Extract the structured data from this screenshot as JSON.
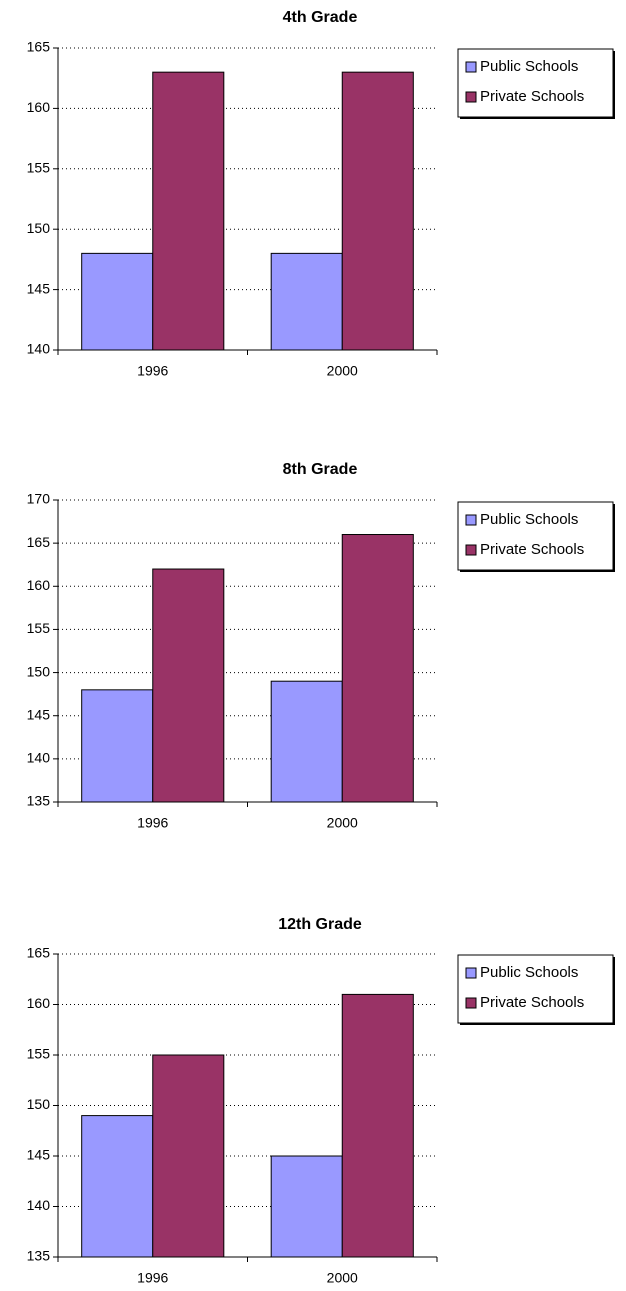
{
  "chart_data": [
    {
      "type": "bar",
      "title": "4th Grade",
      "categories": [
        "1996",
        "2000"
      ],
      "series": [
        {
          "name": "Public Schools",
          "color": "#9999ff",
          "values": [
            148,
            148
          ]
        },
        {
          "name": "Private Schools",
          "color": "#993366",
          "values": [
            163,
            163
          ]
        }
      ],
      "ylim": [
        140,
        165
      ],
      "yticks": [
        140,
        145,
        150,
        155,
        160,
        165
      ],
      "grid": true,
      "legend": "right"
    },
    {
      "type": "bar",
      "title": "8th Grade",
      "categories": [
        "1996",
        "2000"
      ],
      "series": [
        {
          "name": "Public Schools",
          "color": "#9999ff",
          "values": [
            148,
            149
          ]
        },
        {
          "name": "Private Schools",
          "color": "#993366",
          "values": [
            162,
            166
          ]
        }
      ],
      "ylim": [
        135,
        170
      ],
      "yticks": [
        135,
        140,
        145,
        150,
        155,
        160,
        165,
        170
      ],
      "grid": true,
      "legend": "right"
    },
    {
      "type": "bar",
      "title": "12th Grade",
      "categories": [
        "1996",
        "2000"
      ],
      "series": [
        {
          "name": "Public Schools",
          "color": "#9999ff",
          "values": [
            149,
            145
          ]
        },
        {
          "name": "Private Schools",
          "color": "#993366",
          "values": [
            155,
            161
          ]
        }
      ],
      "ylim": [
        135,
        165
      ],
      "yticks": [
        135,
        140,
        145,
        150,
        155,
        160,
        165
      ],
      "grid": true,
      "legend": "right"
    }
  ]
}
